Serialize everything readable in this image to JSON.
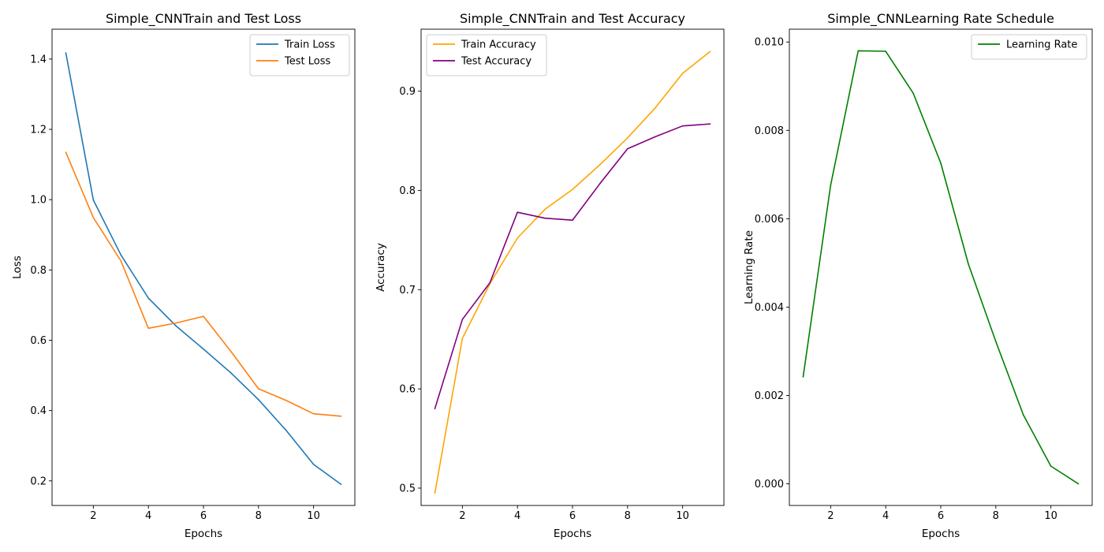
{
  "chart_data": [
    {
      "type": "line",
      "title": "Simple_CNNTrain and Test Loss",
      "xlabel": "Epochs",
      "ylabel": "Loss",
      "xlim": [
        0.5,
        11.5
      ],
      "ylim": [
        0.13,
        1.485
      ],
      "xticks": [
        2,
        4,
        6,
        8,
        10
      ],
      "xtick_labels": [
        "2",
        "4",
        "6",
        "8",
        "10"
      ],
      "yticks": [
        0.2,
        0.4,
        0.6,
        0.8,
        1.0,
        1.2,
        1.4
      ],
      "ytick_labels": [
        "0.2",
        "0.4",
        "0.6",
        "0.8",
        "1.0",
        "1.2",
        "1.4"
      ],
      "grid": false,
      "legend_position": "upper right",
      "x": [
        1,
        2,
        3,
        4,
        5,
        6,
        7,
        8,
        9,
        10,
        11
      ],
      "series": [
        {
          "name": "Train Loss",
          "color": "#1f77b4",
          "values": [
            1.418,
            0.999,
            0.843,
            0.72,
            0.641,
            0.575,
            0.507,
            0.431,
            0.344,
            0.247,
            0.19
          ]
        },
        {
          "name": "Test Loss",
          "color": "#ff7f0e",
          "values": [
            1.135,
            0.949,
            0.826,
            0.634,
            0.649,
            0.668,
            0.568,
            0.462,
            0.429,
            0.391,
            0.384
          ]
        }
      ]
    },
    {
      "type": "line",
      "title": "Simple_CNNTrain and Test Accuracy",
      "xlabel": "Epochs",
      "ylabel": "Accuracy",
      "xlim": [
        0.5,
        11.5
      ],
      "ylim": [
        0.4825,
        0.9625
      ],
      "xticks": [
        2,
        4,
        6,
        8,
        10
      ],
      "xtick_labels": [
        "2",
        "4",
        "6",
        "8",
        "10"
      ],
      "yticks": [
        0.5,
        0.6,
        0.7,
        0.8,
        0.9
      ],
      "ytick_labels": [
        "0.5",
        "0.6",
        "0.7",
        "0.8",
        "0.9"
      ],
      "grid": false,
      "legend_position": "upper left",
      "x": [
        1,
        2,
        3,
        4,
        5,
        6,
        7,
        8,
        9,
        10,
        11
      ],
      "series": [
        {
          "name": "Train Accuracy",
          "color": "#ffa500",
          "values": [
            0.495,
            0.651,
            0.706,
            0.752,
            0.781,
            0.801,
            0.826,
            0.853,
            0.883,
            0.918,
            0.94
          ]
        },
        {
          "name": "Test Accuracy",
          "color": "#800080",
          "values": [
            0.58,
            0.67,
            0.707,
            0.778,
            0.772,
            0.77,
            0.807,
            0.842,
            0.854,
            0.865,
            0.867
          ]
        }
      ]
    },
    {
      "type": "line",
      "title": "Simple_CNNLearning Rate Schedule",
      "xlabel": "Epochs",
      "ylabel": "Learning Rate",
      "xlim": [
        0.5,
        11.5
      ],
      "ylim": [
        -0.00049,
        0.01029
      ],
      "xticks": [
        2,
        4,
        6,
        8,
        10
      ],
      "xtick_labels": [
        "2",
        "4",
        "6",
        "8",
        "10"
      ],
      "yticks": [
        0.0,
        0.002,
        0.004,
        0.006,
        0.008,
        0.01
      ],
      "ytick_labels": [
        "0.000",
        "0.002",
        "0.004",
        "0.006",
        "0.008",
        "0.010"
      ],
      "grid": false,
      "legend_position": "upper right",
      "x": [
        1,
        2,
        3,
        4,
        5,
        6,
        7,
        8,
        9,
        10,
        11
      ],
      "series": [
        {
          "name": "Learning Rate",
          "color": "#008000",
          "values": [
            0.00242,
            0.00676,
            0.0098,
            0.00979,
            0.00884,
            0.00726,
            0.00498,
            0.00322,
            0.00156,
            0.0004,
            0.0
          ]
        }
      ]
    }
  ]
}
